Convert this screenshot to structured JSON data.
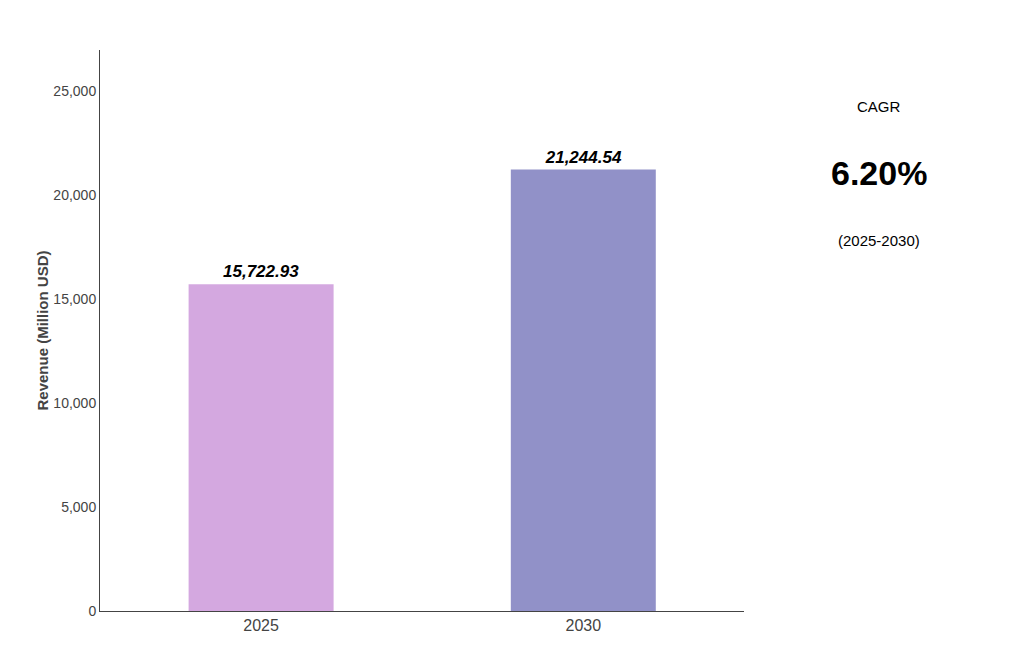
{
  "chart_data": {
    "type": "bar",
    "categories": [
      "2025",
      "2030"
    ],
    "values": [
      15722.93,
      21244.54
    ],
    "value_labels": [
      "15,722.93",
      "21,244.54"
    ],
    "data_labels": true,
    "colors": [
      "#d4a8e0",
      "#9191c8"
    ],
    "ylabel": "Revenue (Million USD)",
    "ylim": [
      0,
      27000
    ],
    "yticks": [
      0,
      {
        "value": 5000,
        "label": "5,000"
      },
      {
        "value": 10000,
        "label": "10,000"
      },
      {
        "value": 15000,
        "label": "15,000"
      },
      {
        "value": 20000,
        "label": "20,000"
      },
      {
        "value": 25000,
        "label": "25,000"
      }
    ],
    "annotations": [
      "CAGR",
      "6.20%",
      "(2025-2030)"
    ],
    "grid": false
  }
}
